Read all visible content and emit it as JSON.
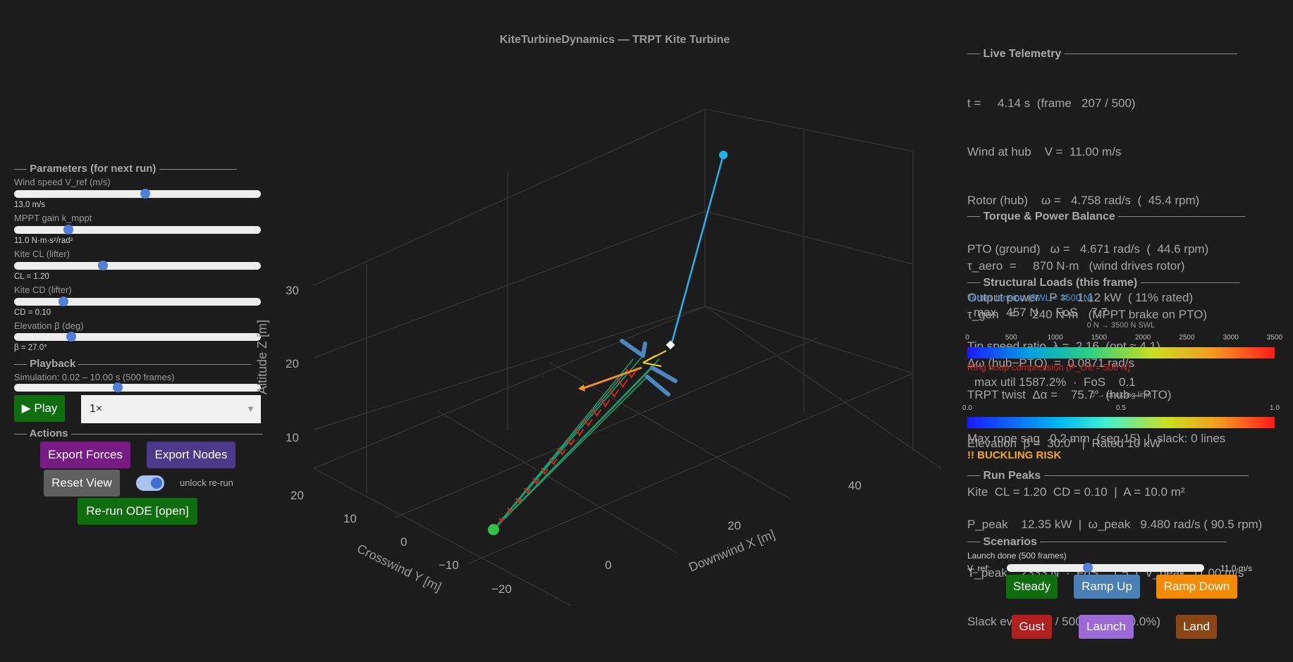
{
  "title": "KiteTurbineDynamics — TRPT Kite Turbine",
  "params": {
    "header": "Parameters (for next run)",
    "wind": {
      "label": "Wind speed V_ref (m/s)",
      "value": "13.0 m/s",
      "level": 0.53
    },
    "mppt": {
      "label": "MPPT gain k_mppt",
      "value": "11.0 N·m·s²/rad²",
      "level": 0.22
    },
    "cl": {
      "label": "Kite CL (lifter)",
      "value": "CL = 1.20",
      "level": 0.36
    },
    "cd": {
      "label": "Kite CD (lifter)",
      "value": "CD = 0.10",
      "level": 0.2
    },
    "beta": {
      "label": "Elevation β (deg)",
      "value": "β = 27.0°",
      "level": 0.23
    }
  },
  "playback": {
    "header": "Playback",
    "sim_label": "Simulation: 0.02 – 10.00 s  (500 frames)",
    "level": 0.42,
    "play_label": "▶ Play",
    "speed_value": "1×"
  },
  "actions": {
    "header": "Actions",
    "export_forces": "Export Forces",
    "export_nodes": "Export Nodes",
    "reset_view": "Reset View",
    "unlock_label": "unlock re-run",
    "rerun": "Re-run ODE [open]"
  },
  "plot": {
    "z_label": "Altitude Z [m]",
    "y_label": "Crosswind Y [m]",
    "x_label": "Downwind X [m]",
    "z_ticks": [
      "30",
      "20",
      "10"
    ],
    "y_ticks": [
      "20",
      "10",
      "0",
      "−10",
      "−20"
    ],
    "x_ticks": [
      "0",
      "20",
      "40"
    ]
  },
  "telemetry": {
    "header": "Live Telemetry",
    "lines": [
      "t =     4.14 s  (frame   207 / 500)",
      "Wind at hub    V =  11.00 m/s",
      "Rotor (hub)    ω =   4.758 rad/s  (  45.4 rpm)",
      "PTO (ground)   ω =   4.671 rad/s  (  44.6 rpm)",
      "Output power   P =   1.12 kW  ( 11% rated)",
      "Tip speed ratio  λ =  2.16  (opt ≈ 4.1)",
      "TRPT twist  Δα =    75.7°  (hub – PTO)",
      "Elevation  β =  30.0°  |  Rated 10 kW",
      "Kite  CL = 1.20  CD = 0.10  |  A = 10.0 m²"
    ]
  },
  "torque": {
    "header": "Torque & Power Balance",
    "lines": [
      "τ_aero  =     870 N·m   (wind drives rotor)",
      "τ_gen   =     240 N·m   (MPPT brake on PTO)",
      "Δω (hub−PTO)  =  0.0871 rad/s"
    ]
  },
  "loads": {
    "header": "Structural Loads (this frame)",
    "tether_label": "Tether tension  (SWL = 3500 N)",
    "tether_value": "max   457 N  ·  FoS    7.7",
    "tether_scale_caption": "0 N → 3500 N SWL",
    "tether_ticks": [
      "0",
      "500",
      "1000",
      "1500",
      "2000",
      "2500",
      "3000",
      "3500"
    ],
    "ring_label": "Ring hoop compression  (P_crit = 500 N)",
    "ring_value": "max util 1587.2%  ·  FoS    0.1",
    "ring_scale_caption": "0 → buckling limit",
    "ring_ticks": [
      "0.0",
      "0.5",
      "1.0"
    ],
    "sag": "Max rope sag   0.2 mm  (seg 15)  |  slack: 0 lines",
    "warning": "!! BUCKLING RISK"
  },
  "peaks": {
    "header": "Run Peaks",
    "lines": [
      "P_peak    12.35 kW  |  ω_peak   9.480 rad/s ( 90.5 rpm)",
      "T_peak    2333 N  ·  FoS    1.5  |  V_peak  11.00 m/s",
      "Slack events:  0 / 500 frames (0.0%)"
    ]
  },
  "scenarios": {
    "header": "Scenarios",
    "status": "Launch done  (500 frames)",
    "vref_label": "V_ref:",
    "vref_value": "11.0 m/s",
    "vref_level": 0.41,
    "buttons": {
      "steady": "Steady",
      "ramp_up": "Ramp Up",
      "ramp_down": "Ramp Down",
      "gust": "Gust",
      "launch": "Launch",
      "land": "Land"
    }
  },
  "colors": {
    "background": "#1c1c1c",
    "play_green": "#0e6e0e",
    "export_forces": "#7a1a86",
    "export_nodes": "#4b3a8a",
    "reset": "#5f5f5f",
    "rerun": "#0e6e0e",
    "tether": "#22b3ea",
    "rings": "#d72020",
    "lines": "#1f9c6c",
    "warning": "#f5a623"
  }
}
